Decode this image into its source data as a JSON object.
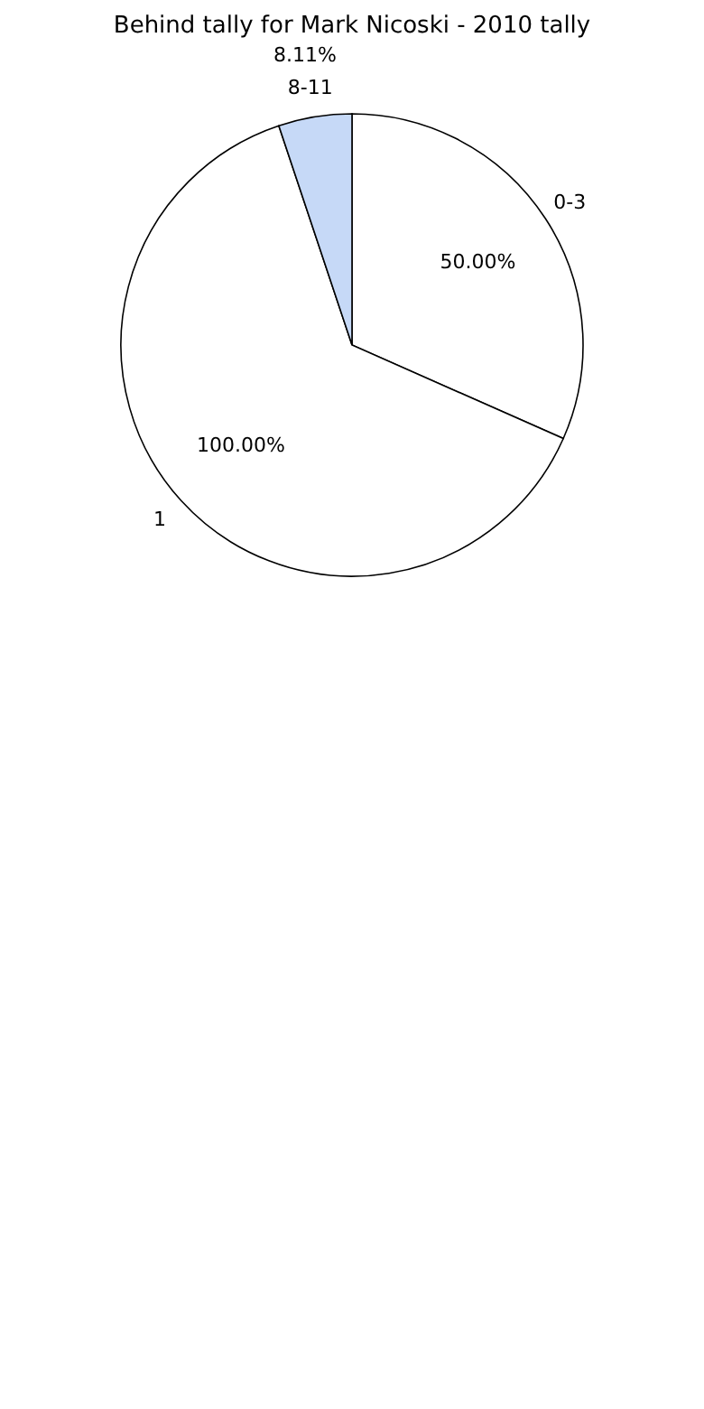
{
  "chart_data": {
    "type": "pie",
    "title": "Behind tally for Mark Nicoski - 2010 tally",
    "categories": [
      "0-3",
      "1",
      "8-11"
    ],
    "values": [
      50,
      100,
      8.11
    ],
    "value_labels": [
      "50.00%",
      "100.00%",
      "8.11%"
    ],
    "colors": [
      "#ffffff",
      "#ffffff",
      "#c6d9f7"
    ],
    "legend": false
  }
}
